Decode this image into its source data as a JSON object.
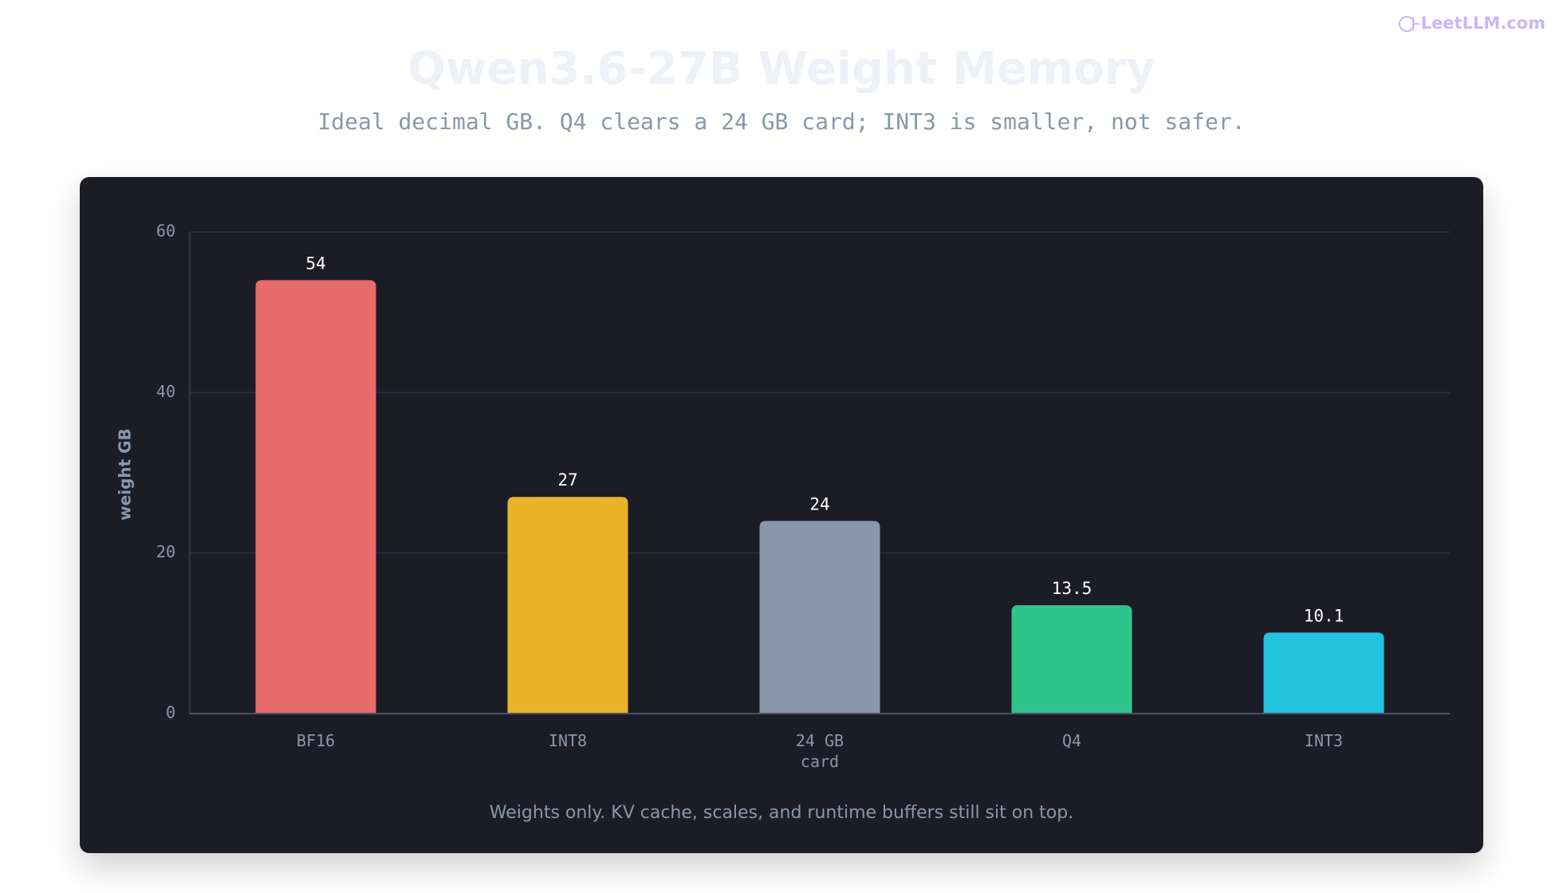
{
  "watermark": "LeetLLM.com",
  "chart_data": {
    "type": "bar",
    "title": "Qwen3.6-27B Weight Memory",
    "subtitle": "Ideal decimal GB. Q4 clears a 24 GB card; INT3 is smaller, not safer.",
    "y_label": "weight GB",
    "note": "Weights only. KV cache, scales, and runtime buffers still sit on top.",
    "categories": [
      "BF16",
      "INT8",
      "24 GB card",
      "Q4",
      "INT3"
    ],
    "values": [
      54,
      27,
      24,
      13.5,
      10.1
    ],
    "colors": [
      "#e86a6a",
      "#e9b227",
      "#8a97aa",
      "#30c48d",
      "#22c4e0"
    ],
    "ylim": [
      0,
      60
    ],
    "yticks": [
      0,
      20,
      40,
      60
    ],
    "grid": true
  }
}
